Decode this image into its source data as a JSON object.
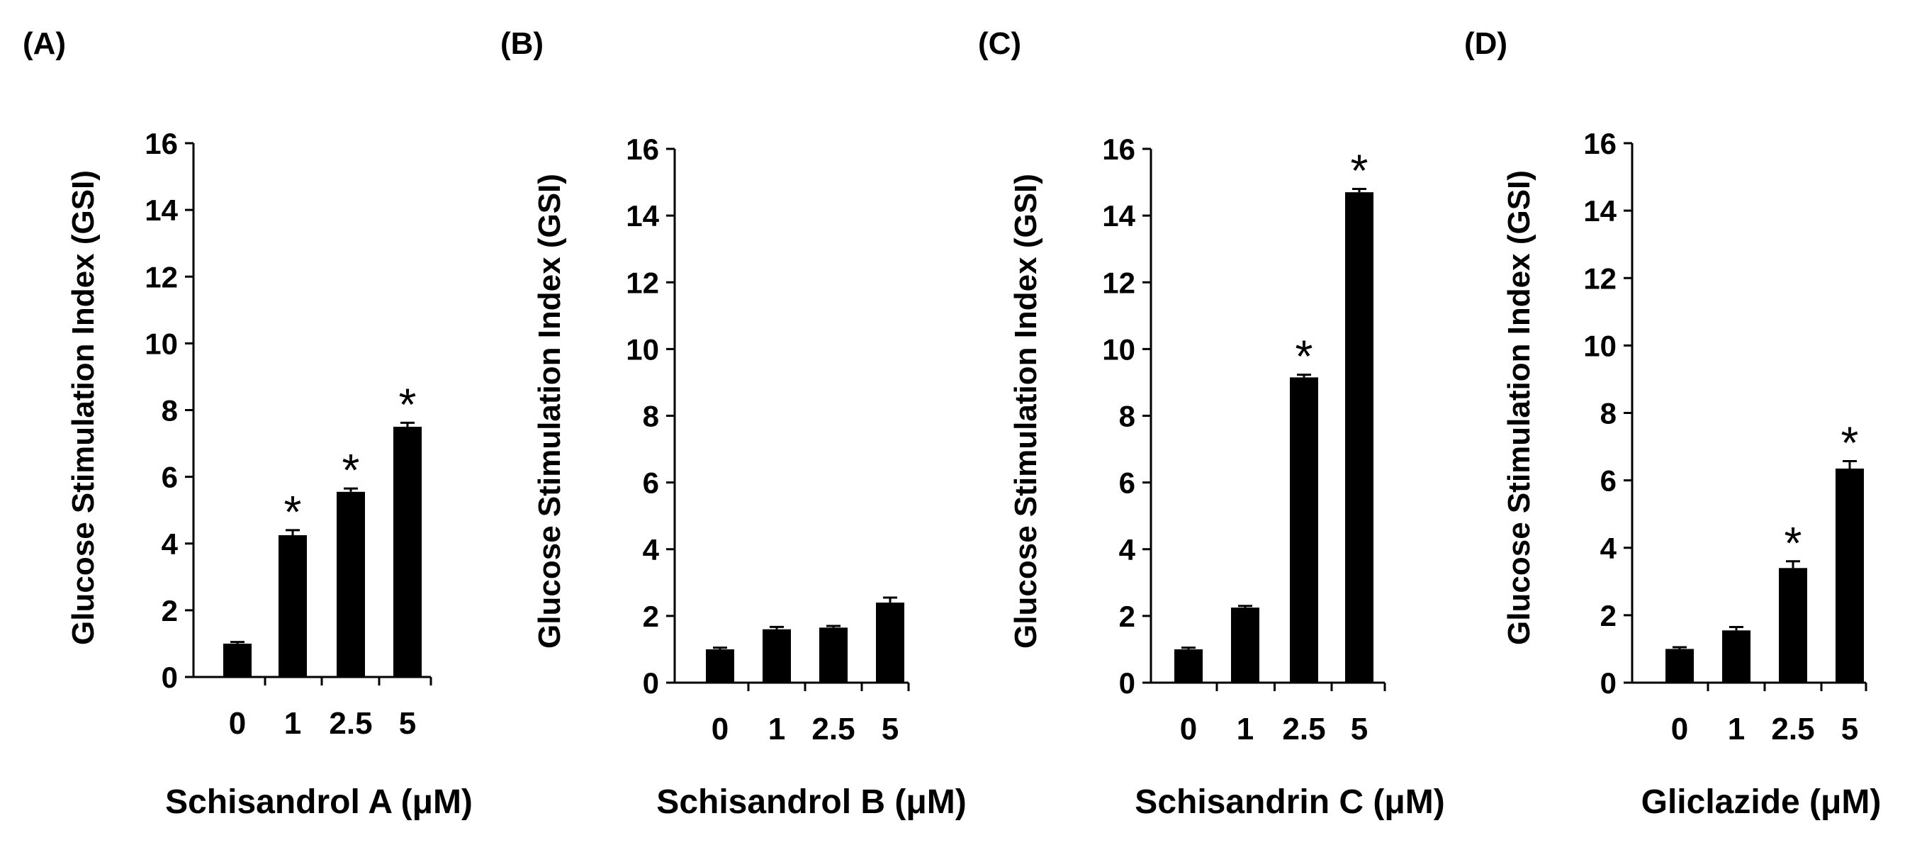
{
  "chart_data": [
    {
      "type": "bar",
      "panel_label": "(A)",
      "categories": [
        "0",
        "1",
        "2.5",
        "5"
      ],
      "values": [
        1.0,
        4.25,
        5.55,
        7.5
      ],
      "errors": [
        0.05,
        0.15,
        0.1,
        0.12
      ],
      "significance": [
        "",
        "*",
        "*",
        "*"
      ],
      "xlabel": "Schisandrol A  (μM)",
      "ylabel": "Glucose Stimulation Index (GSI)",
      "ylim": [
        0,
        16
      ],
      "yticks": [
        "0",
        "2",
        "4",
        "6",
        "8",
        "10",
        "12",
        "14",
        "16"
      ],
      "bar_color": "#000000"
    },
    {
      "type": "bar",
      "panel_label": "(B)",
      "categories": [
        "0",
        "1",
        "2.5",
        "5"
      ],
      "values": [
        1.0,
        1.6,
        1.65,
        2.4
      ],
      "errors": [
        0.05,
        0.07,
        0.05,
        0.15
      ],
      "significance": [
        "",
        "",
        "",
        ""
      ],
      "xlabel": "Schisandrol B (μM)",
      "ylabel": "Glucose Stimulation Index (GSI)",
      "ylim": [
        0,
        16
      ],
      "yticks": [
        "0",
        "2",
        "4",
        "6",
        "8",
        "10",
        "12",
        "14",
        "16"
      ],
      "bar_color": "#000000"
    },
    {
      "type": "bar",
      "panel_label": "(C)",
      "categories": [
        "0",
        "1",
        "2.5",
        "5"
      ],
      "values": [
        1.0,
        2.25,
        9.15,
        14.7
      ],
      "errors": [
        0.05,
        0.05,
        0.08,
        0.1
      ],
      "significance": [
        "",
        "",
        "*",
        "*"
      ],
      "xlabel": "Schisandrin C (μM)",
      "ylabel": "Glucose Stimulation Index (GSI)",
      "ylim": [
        0,
        16
      ],
      "yticks": [
        "0",
        "2",
        "4",
        "6",
        "8",
        "10",
        "12",
        "14",
        "16"
      ],
      "bar_color": "#000000"
    },
    {
      "type": "bar",
      "panel_label": "(D)",
      "categories": [
        "0",
        "1",
        "2.5",
        "5"
      ],
      "values": [
        1.0,
        1.55,
        3.4,
        6.35
      ],
      "errors": [
        0.05,
        0.1,
        0.2,
        0.22
      ],
      "significance": [
        "",
        "",
        "*",
        "*"
      ],
      "xlabel": "Gliclazide (μM)",
      "ylabel": "Glucose Stimulation Index (GSI)",
      "ylim": [
        0,
        16
      ],
      "yticks": [
        "0",
        "2",
        "4",
        "6",
        "8",
        "10",
        "12",
        "14",
        "16"
      ],
      "bar_color": "#000000"
    }
  ]
}
